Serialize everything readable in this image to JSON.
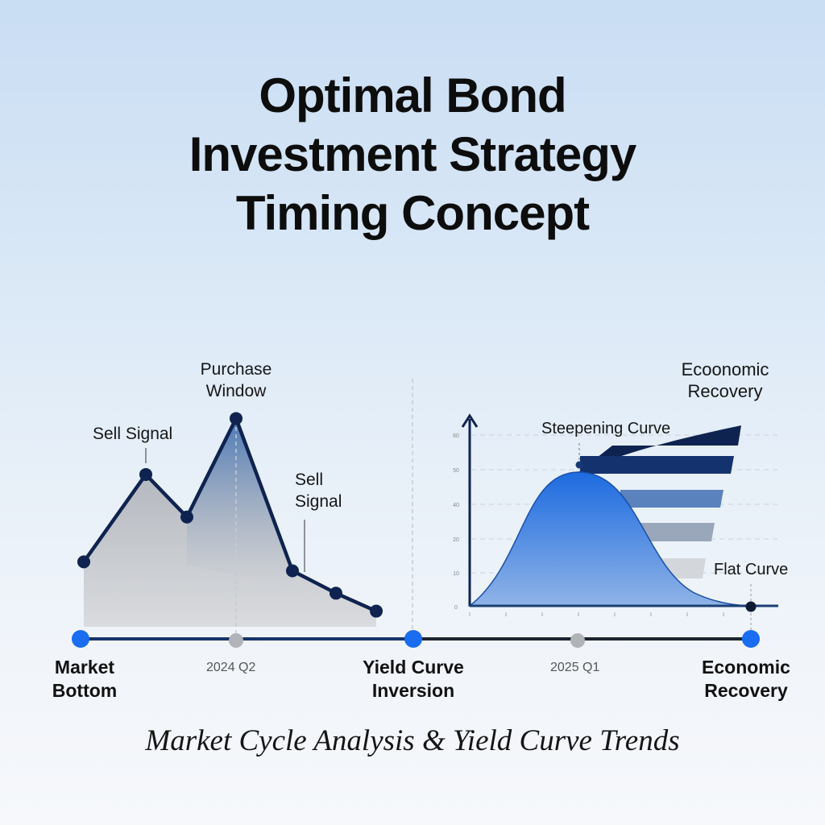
{
  "title": {
    "lines": [
      "Optimal Bond",
      "Investment Strategy",
      "Timing Concept"
    ]
  },
  "subtitle": "Market Cycle Analysis & Yield Curve Trends",
  "colors": {
    "navy": "#0f2350",
    "blue": "#1f6fe0",
    "gray_fill": "#b9bcc2",
    "timeline_dot": "#1a6cf0",
    "timeline_gray": "#b0b3b8"
  },
  "chart_data": [
    {
      "type": "area",
      "values": [
        29,
        68,
        49,
        93,
        25,
        15,
        7
      ],
      "annotations": [
        {
          "text": "Sell Signal",
          "point": 1
        },
        {
          "text": "Purchase Window",
          "point": 3
        },
        {
          "text": "Sell Signal",
          "point": 4
        }
      ]
    },
    {
      "type": "area",
      "yticks": [
        "60",
        "50",
        "40",
        "20",
        "10",
        "0"
      ],
      "curve": "bell",
      "annotations": [
        "Steepening Curve",
        "Flat Curve"
      ],
      "grid": true,
      "top_label": "Ecoonomic Recovery"
    }
  ],
  "timeline": {
    "milestones": [
      {
        "label_lines": [
          "Market",
          "Bottom"
        ]
      },
      {
        "label_lines": [
          "Yield Curve",
          "Inversion"
        ]
      },
      {
        "label_lines": [
          "Economic",
          "Recovery"
        ]
      }
    ],
    "dates": [
      "2024 Q2",
      "2025 Q1"
    ]
  }
}
